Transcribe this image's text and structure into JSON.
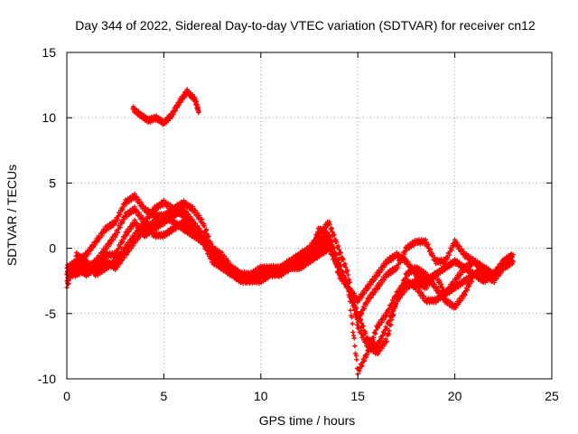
{
  "chart_data": {
    "type": "line",
    "title": "Day 344 of 2022, Sidereal Day-to-day VTEC variation (SDTVAR) for receiver cn12",
    "xlabel": "GPS time / hours",
    "ylabel": "SDTVAR / TECUs",
    "xlim": [
      0,
      25
    ],
    "ylim": [
      -10,
      15
    ],
    "x_ticks": [
      0,
      5,
      10,
      15,
      20,
      25
    ],
    "y_ticks": [
      -10,
      -5,
      0,
      5,
      10,
      15
    ],
    "x_tick_labels": [
      "0",
      "5",
      "10",
      "15",
      "20",
      "25"
    ],
    "y_tick_labels": [
      "-10",
      "-5",
      "0",
      "5",
      "10",
      "15"
    ],
    "grid": true,
    "marker": "plus",
    "series_color": "#ff0000",
    "series": [
      {
        "name": "trace-1",
        "points": [
          [
            0,
            -2.5
          ],
          [
            0.5,
            -1.5
          ],
          [
            1,
            -2
          ],
          [
            1.5,
            -1.5
          ],
          [
            2,
            -0.5
          ],
          [
            2.5,
            -0.5
          ],
          [
            3,
            1
          ],
          [
            3.5,
            2
          ],
          [
            4,
            1
          ],
          [
            4.5,
            1.5
          ],
          [
            5,
            2
          ],
          [
            5.5,
            2.5
          ],
          [
            6,
            3
          ],
          [
            6.5,
            2
          ],
          [
            7,
            1
          ],
          [
            7.5,
            0
          ],
          [
            8,
            -1
          ],
          [
            8.5,
            -1.5
          ],
          [
            9,
            -2
          ],
          [
            9.5,
            -2.5
          ],
          [
            10,
            -2.5
          ],
          [
            10.5,
            -2
          ],
          [
            11,
            -2
          ],
          [
            11.5,
            -1.5
          ],
          [
            12,
            -1
          ],
          [
            12.5,
            -0.5
          ],
          [
            13,
            0.5
          ],
          [
            13.5,
            1
          ],
          [
            14,
            -1
          ],
          [
            14.5,
            -3
          ],
          [
            15,
            -5
          ],
          [
            15.5,
            -7
          ],
          [
            16,
            -7.5
          ],
          [
            16.5,
            -6
          ],
          [
            17,
            -4
          ],
          [
            17.5,
            -3
          ],
          [
            18,
            -2.5
          ],
          [
            18.5,
            -3
          ],
          [
            19,
            -2
          ],
          [
            19.5,
            -3.5
          ],
          [
            20,
            -2.5
          ],
          [
            20.5,
            -1.5
          ],
          [
            21,
            -1
          ],
          [
            21.5,
            -2
          ],
          [
            22,
            -2.5
          ],
          [
            22.5,
            -1.5
          ],
          [
            23,
            -1
          ]
        ]
      },
      {
        "name": "trace-2",
        "points": [
          [
            0,
            -1.5
          ],
          [
            0.5,
            -1
          ],
          [
            1,
            -0.5
          ],
          [
            1.5,
            0.5
          ],
          [
            2,
            1.5
          ],
          [
            2.5,
            2
          ],
          [
            3,
            3.5
          ],
          [
            3.5,
            4
          ],
          [
            4,
            3
          ],
          [
            4.5,
            2.5
          ],
          [
            5,
            2.5
          ],
          [
            5.5,
            3
          ],
          [
            6,
            3.5
          ],
          [
            6.5,
            3
          ],
          [
            7,
            2
          ],
          [
            7.5,
            0
          ],
          [
            8,
            -0.5
          ],
          [
            8.5,
            -1.5
          ],
          [
            9,
            -2
          ],
          [
            9.5,
            -2
          ],
          [
            10,
            -1.5
          ],
          [
            10.5,
            -1.5
          ],
          [
            11,
            -1.5
          ],
          [
            11.5,
            -1
          ],
          [
            12,
            -0.5
          ],
          [
            12.5,
            0
          ],
          [
            13,
            1
          ],
          [
            13.5,
            2
          ],
          [
            14,
            0
          ],
          [
            14.5,
            -2
          ],
          [
            15,
            -6
          ],
          [
            15.5,
            -7.5
          ],
          [
            16,
            -8
          ],
          [
            16.5,
            -7
          ],
          [
            17,
            -4
          ],
          [
            17.5,
            -2
          ],
          [
            18,
            -1.5
          ],
          [
            18.5,
            -2
          ],
          [
            19,
            -3
          ],
          [
            19.5,
            -4
          ],
          [
            20,
            -4.5
          ],
          [
            20.5,
            -3.5
          ],
          [
            21,
            -2
          ],
          [
            21.5,
            -1.5
          ],
          [
            22,
            -2
          ],
          [
            22.5,
            -1
          ],
          [
            23,
            -0.5
          ]
        ]
      },
      {
        "name": "trace-3",
        "points": [
          [
            0,
            -2
          ],
          [
            0.5,
            -2
          ],
          [
            1,
            -1.5
          ],
          [
            1.5,
            -1
          ],
          [
            2,
            0
          ],
          [
            2.5,
            1
          ],
          [
            3,
            2.5
          ],
          [
            3.5,
            3
          ],
          [
            4,
            2
          ],
          [
            4.5,
            1
          ],
          [
            5,
            1
          ],
          [
            5.5,
            1.5
          ],
          [
            6,
            2
          ],
          [
            6.5,
            1.5
          ],
          [
            7,
            0.5
          ],
          [
            7.5,
            -0.5
          ],
          [
            8,
            -1.5
          ],
          [
            8.5,
            -2
          ],
          [
            9,
            -2.5
          ],
          [
            9.5,
            -2.5
          ],
          [
            10,
            -2
          ],
          [
            10.5,
            -2
          ],
          [
            11,
            -2
          ],
          [
            11.5,
            -1.5
          ],
          [
            12,
            -1
          ],
          [
            12.5,
            -0.5
          ],
          [
            13,
            0
          ],
          [
            13.5,
            0.5
          ],
          [
            14,
            -1.5
          ],
          [
            14.5,
            -3
          ],
          [
            15,
            -9.5
          ],
          [
            15.5,
            -8
          ],
          [
            16,
            -6
          ],
          [
            16.5,
            -5
          ],
          [
            17,
            -3.5
          ],
          [
            17.5,
            -2.5
          ],
          [
            18,
            -3
          ],
          [
            18.5,
            -4
          ],
          [
            19,
            -4
          ],
          [
            19.5,
            -3.5
          ],
          [
            20,
            -3
          ],
          [
            20.5,
            -2.5
          ],
          [
            21,
            -2
          ],
          [
            21.5,
            -2.5
          ],
          [
            22,
            -2
          ],
          [
            22.5,
            -1.5
          ],
          [
            23,
            -1
          ]
        ]
      },
      {
        "name": "trace-4",
        "points": [
          [
            0,
            -3
          ],
          [
            0.5,
            -0.5
          ],
          [
            1,
            -1
          ],
          [
            1.5,
            -2
          ],
          [
            2,
            -1.5
          ],
          [
            2.5,
            -1
          ],
          [
            3,
            0
          ],
          [
            3.5,
            1
          ],
          [
            4,
            2
          ],
          [
            4.5,
            3
          ],
          [
            5,
            3.5
          ],
          [
            5.5,
            3
          ],
          [
            6,
            2.5
          ],
          [
            6.5,
            2
          ],
          [
            7,
            1
          ],
          [
            7.5,
            -0.5
          ],
          [
            8,
            -1
          ],
          [
            8.5,
            -1.5
          ],
          [
            9,
            -2
          ],
          [
            9.5,
            -2
          ],
          [
            10,
            -2
          ],
          [
            10.5,
            -1.5
          ],
          [
            11,
            -1.5
          ],
          [
            11.5,
            -1
          ],
          [
            12,
            -1
          ],
          [
            12.5,
            -0.5
          ],
          [
            13,
            1.5
          ],
          [
            13.5,
            1
          ],
          [
            14,
            -2
          ],
          [
            14.5,
            -3
          ],
          [
            15,
            -5.5
          ],
          [
            15.5,
            -4
          ],
          [
            16,
            -3
          ],
          [
            16.5,
            -2
          ],
          [
            17,
            -1.5
          ],
          [
            17.5,
            0
          ],
          [
            18,
            0.5
          ],
          [
            18.5,
            0.5
          ],
          [
            19,
            -1
          ],
          [
            19.5,
            -1
          ],
          [
            20,
            0.5
          ],
          [
            20.5,
            -0.5
          ],
          [
            21,
            -1
          ],
          [
            21.5,
            -1.5
          ],
          [
            22,
            -2
          ],
          [
            22.5,
            -1
          ],
          [
            23,
            -0.5
          ]
        ]
      },
      {
        "name": "trace-5",
        "points": [
          [
            0,
            -2
          ],
          [
            0.5,
            -1
          ],
          [
            1,
            -1.5
          ],
          [
            1.5,
            -1.5
          ],
          [
            2,
            -1
          ],
          [
            2.5,
            -1.5
          ],
          [
            3,
            -0.5
          ],
          [
            3.5,
            0.5
          ],
          [
            4,
            1.5
          ],
          [
            4.5,
            2
          ],
          [
            5,
            2.5
          ],
          [
            5.5,
            2
          ],
          [
            6,
            1.5
          ],
          [
            6.5,
            1
          ],
          [
            7,
            0.5
          ],
          [
            7.5,
            -1
          ],
          [
            8,
            -1.5
          ],
          [
            8.5,
            -2
          ],
          [
            9,
            -2.5
          ],
          [
            9.5,
            -2.5
          ],
          [
            10,
            -2
          ],
          [
            10.5,
            -2
          ],
          [
            11,
            -2
          ],
          [
            11.5,
            -1.5
          ],
          [
            12,
            -1.5
          ],
          [
            12.5,
            -1
          ],
          [
            13,
            -0.5
          ],
          [
            13.5,
            0
          ],
          [
            14,
            -1.5
          ],
          [
            14.5,
            -3
          ],
          [
            15,
            -4
          ],
          [
            15.5,
            -3
          ],
          [
            16,
            -2
          ],
          [
            16.5,
            -1
          ],
          [
            17,
            -0.5
          ],
          [
            17.5,
            -1
          ],
          [
            18,
            -2
          ],
          [
            18.5,
            -2.5
          ],
          [
            19,
            -2
          ],
          [
            19.5,
            -1.5
          ],
          [
            20,
            -1
          ],
          [
            20.5,
            -1.5
          ],
          [
            21,
            -2
          ],
          [
            21.5,
            -2.5
          ],
          [
            22,
            -2
          ],
          [
            22.5,
            -1.5
          ],
          [
            23,
            -1
          ]
        ]
      },
      {
        "name": "trace-6",
        "points": [
          [
            3.4,
            10.7
          ],
          [
            3.8,
            10.2
          ],
          [
            4.2,
            9.8
          ],
          [
            4.6,
            10
          ],
          [
            5,
            9.6
          ],
          [
            5.4,
            10.2
          ],
          [
            5.8,
            11.2
          ],
          [
            6.2,
            12
          ],
          [
            6.6,
            11.4
          ],
          [
            6.8,
            10.5
          ]
        ]
      }
    ]
  }
}
